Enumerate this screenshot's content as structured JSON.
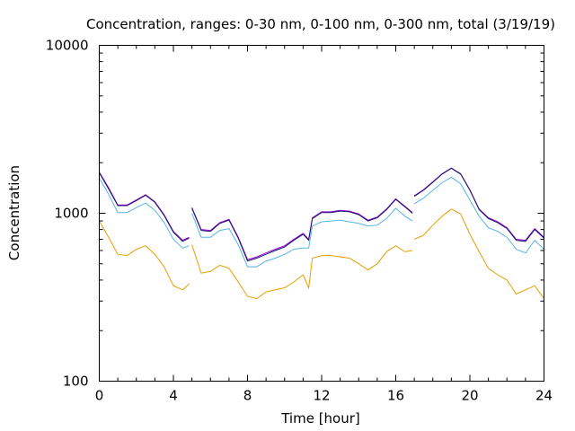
{
  "chart_data": {
    "type": "line",
    "title": "Concentration, ranges: 0-30 nm, 0-100 nm, 0-300 nm, total (3/19/19)",
    "xlabel": "Time [hour]",
    "ylabel": "Concentration",
    "xlim": [
      0,
      24
    ],
    "ylim": [
      100,
      10000
    ],
    "yscale": "log",
    "grid": false,
    "x_ticks": [
      0,
      4,
      8,
      12,
      16,
      20,
      24
    ],
    "x_tick_labels": [
      "0",
      "4",
      "8",
      "12",
      "16",
      "20",
      "24"
    ],
    "y_ticks": [
      100,
      1000,
      10000
    ],
    "y_tick_labels": [
      "100",
      "1000",
      "10000"
    ],
    "segments": [
      [
        0,
        4.85
      ],
      [
        5.0,
        11.0
      ],
      [
        11.0,
        16.9
      ],
      [
        17.0,
        24
      ]
    ],
    "series": [
      {
        "color": "#e69f00",
        "x": [
          0,
          0.5,
          1,
          1.5,
          2,
          2.5,
          3,
          3.5,
          4,
          4.5,
          4.85,
          5,
          5.5,
          6,
          6.5,
          7,
          7.5,
          8,
          8.5,
          9,
          9.5,
          10,
          10.5,
          11,
          11.3,
          11.5,
          12,
          12.5,
          13,
          13.5,
          14,
          14.5,
          15,
          15.5,
          16,
          16.5,
          16.9,
          17,
          17.5,
          18,
          18.5,
          19,
          19.5,
          20,
          20.5,
          21,
          21.5,
          22,
          22.5,
          23,
          23.5,
          24
        ],
        "values": [
          900,
          720,
          570,
          560,
          610,
          640,
          570,
          480,
          370,
          350,
          380,
          650,
          440,
          450,
          490,
          470,
          390,
          320,
          310,
          340,
          350,
          360,
          390,
          430,
          360,
          540,
          560,
          560,
          550,
          540,
          500,
          460,
          500,
          590,
          640,
          590,
          600,
          700,
          740,
          850,
          960,
          1060,
          990,
          750,
          590,
          470,
          430,
          400,
          330,
          350,
          370,
          310
        ]
      },
      {
        "color": "#56b4e9",
        "x": [
          0,
          0.5,
          1,
          1.5,
          2,
          2.5,
          3,
          3.5,
          4,
          4.5,
          4.85,
          5,
          5.5,
          6,
          6.5,
          7,
          7.5,
          8,
          8.5,
          9,
          9.5,
          10,
          10.5,
          11,
          11.3,
          11.5,
          12,
          12.5,
          13,
          13.5,
          14,
          14.5,
          15,
          15.5,
          16,
          16.5,
          16.9,
          17,
          17.5,
          18,
          18.5,
          19,
          19.5,
          20,
          20.5,
          21,
          21.5,
          22,
          22.5,
          23,
          23.5,
          24
        ],
        "values": [
          1620,
          1300,
          1010,
          1010,
          1080,
          1150,
          1040,
          880,
          700,
          620,
          640,
          1000,
          720,
          720,
          790,
          810,
          650,
          480,
          480,
          520,
          540,
          570,
          610,
          620,
          620,
          840,
          890,
          900,
          910,
          890,
          870,
          840,
          850,
          930,
          1070,
          960,
          900,
          1140,
          1230,
          1370,
          1520,
          1640,
          1500,
          1200,
          960,
          820,
          780,
          720,
          610,
          580,
          690,
          610
        ]
      },
      {
        "color": "#9400d3",
        "x": [
          0,
          0.5,
          1,
          1.5,
          2,
          2.5,
          3,
          3.5,
          4,
          4.5,
          4.85,
          5,
          5.5,
          6,
          6.5,
          7,
          7.5,
          8,
          8.5,
          9,
          9.5,
          10,
          10.5,
          11,
          11.3,
          11.5,
          12,
          12.5,
          13,
          13.5,
          14,
          14.5,
          15,
          15.5,
          16,
          16.5,
          16.9,
          17,
          17.5,
          18,
          18.5,
          19,
          19.5,
          20,
          20.5,
          21,
          21.5,
          22,
          22.5,
          23,
          23.5,
          24
        ],
        "values": [
          1760,
          1420,
          1120,
          1120,
          1200,
          1290,
          1170,
          980,
          780,
          690,
          720,
          1080,
          800,
          790,
          880,
          920,
          720,
          530,
          550,
          580,
          610,
          640,
          700,
          760,
          700,
          940,
          1020,
          1020,
          1040,
          1030,
          990,
          910,
          950,
          1060,
          1220,
          1100,
          1010,
          1270,
          1380,
          1540,
          1720,
          1860,
          1720,
          1380,
          1060,
          940,
          890,
          820,
          700,
          690,
          810,
          720
        ]
      },
      {
        "color": "#1a1a6e",
        "x": [
          0,
          0.5,
          1,
          1.5,
          2,
          2.5,
          3,
          3.5,
          4,
          4.5,
          4.85,
          5,
          5.5,
          6,
          6.5,
          7,
          7.5,
          8,
          8.5,
          9,
          9.5,
          10,
          10.5,
          11,
          11.3,
          11.5,
          12,
          12.5,
          13,
          13.5,
          14,
          14.5,
          15,
          15.5,
          16,
          16.5,
          16.9,
          17,
          17.5,
          18,
          18.5,
          19,
          19.5,
          20,
          20.5,
          21,
          21.5,
          22,
          22.5,
          23,
          23.5,
          24
        ],
        "values": [
          1740,
          1400,
          1110,
          1110,
          1190,
          1280,
          1160,
          970,
          770,
          680,
          710,
          1070,
          790,
          780,
          870,
          910,
          710,
          520,
          540,
          570,
          600,
          630,
          690,
          750,
          690,
          930,
          1010,
          1010,
          1030,
          1020,
          980,
          900,
          940,
          1050,
          1210,
          1090,
          1000,
          1260,
          1370,
          1530,
          1710,
          1850,
          1710,
          1370,
          1050,
          930,
          880,
          810,
          690,
          680,
          800,
          710
        ]
      }
    ]
  }
}
